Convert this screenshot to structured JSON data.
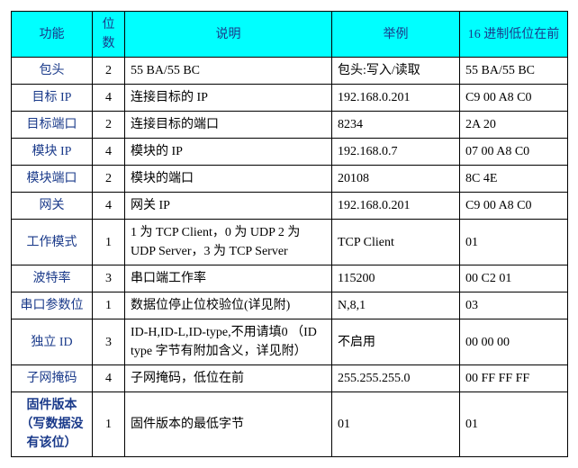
{
  "table": {
    "header_bg": "#00ffff",
    "border_color": "#000000",
    "func_color": "#1a3a8a",
    "columns": [
      "功能",
      "位数",
      "说明",
      "举例",
      "16 进制低位在前"
    ],
    "rows": [
      {
        "func": "包头",
        "bits": "2",
        "desc": "55 BA/55 BC",
        "example": "包头:写入/读取",
        "hex": "55 BA/55 BC"
      },
      {
        "func": "目标 IP",
        "bits": "4",
        "desc": "连接目标的 IP",
        "example": "192.168.0.201",
        "hex": "C9 00 A8 C0"
      },
      {
        "func": "目标端口",
        "bits": "2",
        "desc": "连接目标的端口",
        "example": "8234",
        "hex": "2A 20"
      },
      {
        "func": "模块 IP",
        "bits": "4",
        "desc": "模块的 IP",
        "example": "192.168.0.7",
        "hex": "07 00 A8 C0"
      },
      {
        "func": "模块端口",
        "bits": "2",
        "desc": "模块的端口",
        "example": "20108",
        "hex": "8C 4E"
      },
      {
        "func": "网关",
        "bits": "4",
        "desc": "网关 IP",
        "example": "192.168.0.201",
        "hex": "C9 00 A8 C0"
      },
      {
        "func": "工作模式",
        "bits": "1",
        "desc": "1 为 TCP Client，0 为 UDP 2 为 UDP Server，3 为 TCP Server",
        "example": "TCP Client",
        "hex": "01"
      },
      {
        "func": "波特率",
        "bits": "3",
        "desc": "串口端工作率",
        "example": "115200",
        "hex": "00 C2 01"
      },
      {
        "func": "串口参数位",
        "bits": "1",
        "desc": "数据位停止位校验位(详见附)",
        "example": "N,8,1",
        "hex": "03"
      },
      {
        "func": "独立 ID",
        "bits": "3",
        "desc": "ID-H,ID-L,ID-type,不用请填0 （ID type 字节有附加含义，详见附）",
        "example": "不启用",
        "hex": "00 00 00"
      },
      {
        "func": "子网掩码",
        "bits": "4",
        "desc": "子网掩码，低位在前",
        "example": "255.255.255.0",
        "hex": "00 FF FF FF"
      },
      {
        "func": "固件版本（写数据没有该位）",
        "bits": "1",
        "desc": "固件版本的最低字节",
        "example": "01",
        "hex": "01",
        "func_bold": true
      }
    ]
  }
}
